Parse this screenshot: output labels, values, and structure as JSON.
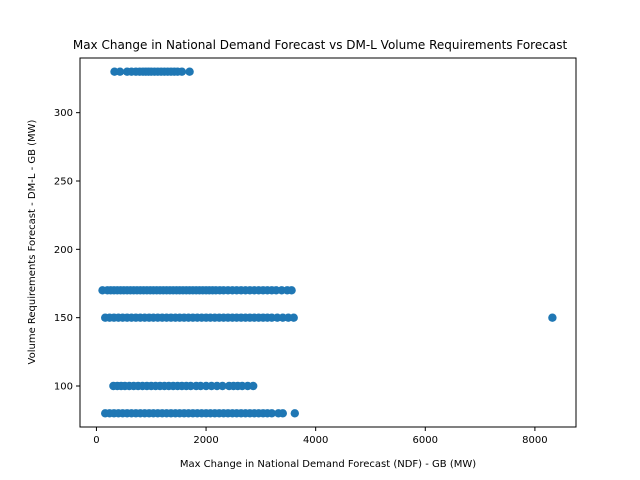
{
  "chart_data": {
    "type": "scatter",
    "title": "Max Change in National Demand Forecast vs DM-L Volume Requirements Forecast",
    "xlabel": "Max Change in National Demand Forecast (NDF) - GB (MW)",
    "ylabel": "Volume Requirements Forecast - DM-L - GB (MW)",
    "xlim": [
      -300,
      8750
    ],
    "ylim": [
      70,
      340
    ],
    "xticks": [
      0,
      2000,
      4000,
      6000,
      8000
    ],
    "yticks": [
      100,
      150,
      200,
      250,
      300
    ],
    "grid": false,
    "marker_color": "#1f77b4",
    "series": [
      {
        "values_x": [
          330,
          430,
          560,
          640,
          720,
          790,
          850,
          900,
          950,
          1000,
          1060,
          1120,
          1180,
          1240,
          1300,
          1360,
          1420,
          1480,
          1560,
          1700,
          110,
          200,
          260,
          320,
          380,
          440,
          500,
          560,
          620,
          680,
          740,
          800,
          860,
          920,
          980,
          1040,
          1100,
          1160,
          1220,
          1280,
          1340,
          1400,
          1460,
          1520,
          1580,
          1640,
          1700,
          1760,
          1820,
          1880,
          1940,
          2000,
          2060,
          2120,
          2180,
          2250,
          2320,
          2400,
          2480,
          2560,
          2640,
          2720,
          2800,
          2880,
          2960,
          3040,
          3120,
          3200,
          3280,
          3380,
          3480,
          3560,
          160,
          240,
          320,
          400,
          480,
          560,
          640,
          720,
          800,
          880,
          960,
          1040,
          1120,
          1200,
          1280,
          1360,
          1440,
          1520,
          1600,
          1680,
          1760,
          1840,
          1920,
          2000,
          2080,
          2160,
          2240,
          2320,
          2400,
          2480,
          2560,
          2640,
          2720,
          2800,
          2880,
          2960,
          3040,
          3120,
          3200,
          3300,
          3400,
          3500,
          3600,
          8320,
          310,
          380,
          450,
          520,
          600,
          680,
          760,
          840,
          920,
          1000,
          1080,
          1160,
          1240,
          1320,
          1400,
          1480,
          1560,
          1640,
          1720,
          1820,
          1900,
          2000,
          2100,
          2200,
          2300,
          2420,
          2500,
          2580,
          2660,
          2760,
          2860,
          160,
          240,
          320,
          400,
          480,
          560,
          640,
          720,
          800,
          880,
          960,
          1040,
          1120,
          1200,
          1280,
          1360,
          1440,
          1520,
          1600,
          1680,
          1760,
          1840,
          1920,
          2000,
          2080,
          2160,
          2240,
          2320,
          2400,
          2480,
          2560,
          2640,
          2720,
          2800,
          2880,
          2960,
          3040,
          3120,
          3200,
          3320,
          3400,
          3620
        ],
        "values_y": [
          330,
          330,
          330,
          330,
          330,
          330,
          330,
          330,
          330,
          330,
          330,
          330,
          330,
          330,
          330,
          330,
          330,
          330,
          330,
          330,
          170,
          170,
          170,
          170,
          170,
          170,
          170,
          170,
          170,
          170,
          170,
          170,
          170,
          170,
          170,
          170,
          170,
          170,
          170,
          170,
          170,
          170,
          170,
          170,
          170,
          170,
          170,
          170,
          170,
          170,
          170,
          170,
          170,
          170,
          170,
          170,
          170,
          170,
          170,
          170,
          170,
          170,
          170,
          170,
          170,
          170,
          170,
          170,
          170,
          170,
          170,
          170,
          150,
          150,
          150,
          150,
          150,
          150,
          150,
          150,
          150,
          150,
          150,
          150,
          150,
          150,
          150,
          150,
          150,
          150,
          150,
          150,
          150,
          150,
          150,
          150,
          150,
          150,
          150,
          150,
          150,
          150,
          150,
          150,
          150,
          150,
          150,
          150,
          150,
          150,
          150,
          150,
          150,
          150,
          150,
          150,
          100,
          100,
          100,
          100,
          100,
          100,
          100,
          100,
          100,
          100,
          100,
          100,
          100,
          100,
          100,
          100,
          100,
          100,
          100,
          100,
          100,
          100,
          100,
          100,
          100,
          100,
          100,
          100,
          100,
          100,
          100,
          80,
          80,
          80,
          80,
          80,
          80,
          80,
          80,
          80,
          80,
          80,
          80,
          80,
          80,
          80,
          80,
          80,
          80,
          80,
          80,
          80,
          80,
          80,
          80,
          80,
          80,
          80,
          80,
          80,
          80,
          80,
          80,
          80,
          80,
          80,
          80,
          80,
          80,
          80,
          80,
          80,
          80
        ]
      }
    ]
  }
}
